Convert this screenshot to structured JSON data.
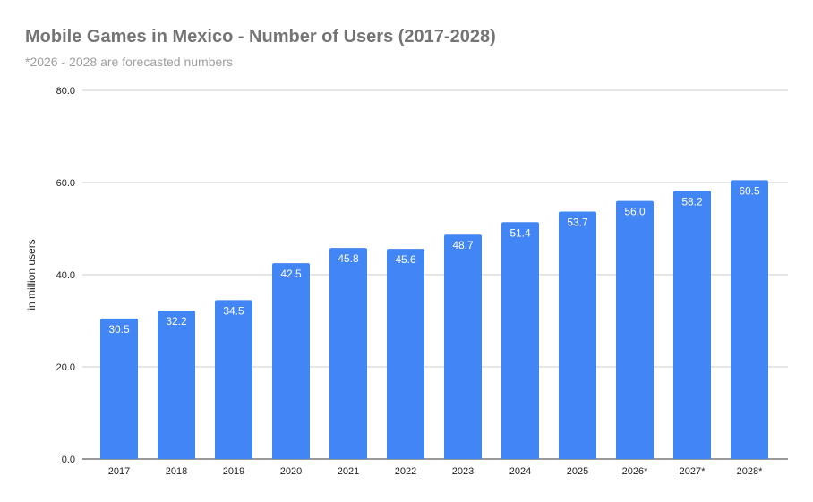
{
  "chart_data": {
    "type": "bar",
    "title": "Mobile Games in Mexico - Number of Users (2017-2028)",
    "subtitle": "*2026 - 2028 are forecasted numbers",
    "xlabel": "",
    "ylabel": "in million users",
    "ylim": [
      0,
      80
    ],
    "yticks": [
      "0.0",
      "20.0",
      "40.0",
      "60.0",
      "80.0"
    ],
    "grid": true,
    "categories": [
      "2017",
      "2018",
      "2019",
      "2020",
      "2021",
      "2022",
      "2023",
      "2024",
      "2025",
      "2026*",
      "2027*",
      "2028*"
    ],
    "values": [
      30.5,
      32.2,
      34.5,
      42.5,
      45.8,
      45.6,
      48.7,
      51.4,
      53.7,
      56.0,
      58.2,
      60.5
    ],
    "data_labels": [
      "30.5",
      "32.2",
      "34.5",
      "42.5",
      "45.8",
      "45.6",
      "48.7",
      "51.4",
      "53.7",
      "56.0",
      "58.2",
      "60.5"
    ],
    "bar_color": "#4285f4"
  }
}
